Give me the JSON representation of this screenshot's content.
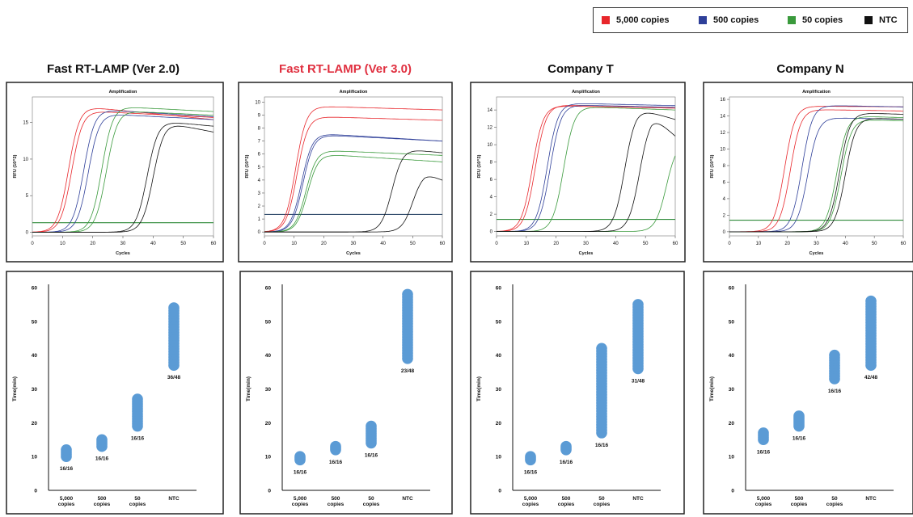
{
  "legend": [
    {
      "label": "5,000 copies",
      "color": "#e8262b"
    },
    {
      "label": "500 copies",
      "color": "#2e3f99"
    },
    {
      "label": "50 copies",
      "color": "#3a9a3c"
    },
    {
      "label": "NTC",
      "color": "#111111"
    }
  ],
  "columns": [
    {
      "title": "Fast RT-LAMP (Ver 2.0)",
      "title_color": "#111111"
    },
    {
      "title": "Fast RT-LAMP (Ver 3.0)",
      "title_color": "#e03040"
    },
    {
      "title": "Company T",
      "title_color": "#111111"
    },
    {
      "title": "Company N",
      "title_color": "#111111"
    }
  ],
  "chart_data": [
    {
      "type": "line",
      "panel": "amplification",
      "column": 0,
      "title": "Amplification",
      "xlabel": "Cycles",
      "ylabel": "RFU (10^3)",
      "xlim": [
        0,
        60
      ],
      "ylim": [
        -0.5,
        18.5
      ],
      "xticks": [
        0,
        10,
        20,
        30,
        40,
        50,
        60
      ],
      "yticks": [
        0,
        5,
        10,
        15
      ],
      "threshold": 1.3,
      "series": [
        {
          "color": "#e8262b",
          "curves": [
            {
              "mid": 12,
              "max": 17.2,
              "end": 15.4
            },
            {
              "mid": 13,
              "max": 16.6,
              "end": 15.7
            }
          ]
        },
        {
          "color": "#2e3f99",
          "curves": [
            {
              "mid": 17,
              "max": 16.8,
              "end": 15.8
            },
            {
              "mid": 18.5,
              "max": 16.2,
              "end": 15.4
            }
          ]
        },
        {
          "color": "#3a9a3c",
          "curves": [
            {
              "mid": 23,
              "max": 17.2,
              "end": 16.5
            },
            {
              "mid": 24.5,
              "max": 16.6,
              "end": 16.0
            }
          ]
        },
        {
          "color": "#111111",
          "curves": [
            {
              "mid": 38,
              "max": 15.2,
              "end": 14.5
            },
            {
              "mid": 40,
              "max": 15.0,
              "end": 13.7
            }
          ]
        }
      ]
    },
    {
      "type": "line",
      "panel": "amplification",
      "column": 1,
      "title": "Amplification",
      "xlabel": "Cycles",
      "ylabel": "RFU (10^3)",
      "xlim": [
        0,
        60
      ],
      "ylim": [
        -0.3,
        10.4
      ],
      "xticks": [
        0,
        10,
        20,
        30,
        40,
        50,
        60
      ],
      "yticks": [
        0,
        1,
        2,
        3,
        4,
        5,
        6,
        7,
        8,
        9,
        10
      ],
      "threshold": 1.35,
      "series": [
        {
          "color": "#e8262b",
          "curves": [
            {
              "mid": 10.5,
              "max": 9.7,
              "end": 9.4
            },
            {
              "mid": 11,
              "max": 8.9,
              "end": 8.6
            }
          ]
        },
        {
          "color": "#2e3f99",
          "curves": [
            {
              "mid": 12.5,
              "max": 7.6,
              "end": 7.0
            },
            {
              "mid": 13,
              "max": 7.5,
              "end": 7.0
            }
          ]
        },
        {
          "color": "#3a9a3c",
          "curves": [
            {
              "mid": 14,
              "max": 6.3,
              "end": 5.9
            },
            {
              "mid": 14.5,
              "max": 6.0,
              "end": 5.4
            }
          ]
        },
        {
          "color": "#111111",
          "curves": [
            {
              "mid": 43,
              "max": 6.4,
              "end": 6.1
            },
            {
              "mid": 50,
              "max": 4.6,
              "end": 4.0
            }
          ]
        }
      ]
    },
    {
      "type": "line",
      "panel": "amplification",
      "column": 2,
      "title": "Amplification",
      "xlabel": "Cycles",
      "ylabel": "RFU (10^3)",
      "xlim": [
        0,
        60
      ],
      "ylim": [
        -0.5,
        15.5
      ],
      "xticks": [
        0,
        10,
        20,
        30,
        40,
        50,
        60
      ],
      "yticks": [
        0,
        2,
        4,
        6,
        8,
        10,
        12,
        14
      ],
      "threshold": 1.4,
      "series": [
        {
          "color": "#e8262b",
          "curves": [
            {
              "mid": 12,
              "max": 14.5,
              "end": 14.2
            },
            {
              "mid": 13,
              "max": 14.6,
              "end": 14.3
            }
          ]
        },
        {
          "color": "#2e3f99",
          "curves": [
            {
              "mid": 17,
              "max": 14.8,
              "end": 14.5
            },
            {
              "mid": 18,
              "max": 14.6,
              "end": 14.3
            }
          ]
        },
        {
          "color": "#3a9a3c",
          "curves": [
            {
              "mid": 22.5,
              "max": 14.4,
              "end": 14.0
            },
            {
              "mid": 57,
              "max": 14.0,
              "end": 10.4
            }
          ]
        },
        {
          "color": "#111111",
          "curves": [
            {
              "mid": 43,
              "max": 14.2,
              "end": 12.9
            },
            {
              "mid": 48,
              "max": 13.5,
              "end": 11.0
            }
          ]
        }
      ]
    },
    {
      "type": "line",
      "panel": "amplification",
      "column": 3,
      "title": "Amplification",
      "xlabel": "Cycles",
      "ylabel": "RFU (10^3)",
      "xlim": [
        0,
        60
      ],
      "ylim": [
        -0.5,
        16.3
      ],
      "xticks": [
        0,
        10,
        20,
        30,
        40,
        50,
        60
      ],
      "yticks": [
        0,
        2,
        4,
        6,
        8,
        10,
        12,
        14,
        16
      ],
      "threshold": 1.4,
      "series": [
        {
          "color": "#e8262b",
          "curves": [
            {
              "mid": 19,
              "max": 15.2,
              "end": 15.1
            },
            {
              "mid": 21,
              "max": 14.8,
              "end": 14.6
            }
          ]
        },
        {
          "color": "#2e3f99",
          "curves": [
            {
              "mid": 25,
              "max": 15.3,
              "end": 15.1
            },
            {
              "mid": 27,
              "max": 13.8,
              "end": 13.6
            }
          ]
        },
        {
          "color": "#3a9a3c",
          "curves": [
            {
              "mid": 37,
              "max": 14.0,
              "end": 13.8
            },
            {
              "mid": 38.5,
              "max": 13.6,
              "end": 13.4
            }
          ]
        },
        {
          "color": "#111111",
          "curves": [
            {
              "mid": 38,
              "max": 14.4,
              "end": 14.2
            },
            {
              "mid": 40,
              "max": 13.8,
              "end": 13.6
            }
          ]
        }
      ]
    },
    {
      "type": "scatter",
      "panel": "time",
      "column": 0,
      "ylabel": "Time(min)",
      "ylim": [
        0,
        60
      ],
      "yticks": [
        0,
        10,
        20,
        30,
        40,
        50,
        60
      ],
      "categories": [
        "5,000\ncopies",
        "500\ncopies",
        "50\ncopies",
        "NTC"
      ],
      "ranges": [
        [
          10,
          12
        ],
        [
          13,
          15
        ],
        [
          19,
          27
        ],
        [
          37,
          54
        ]
      ],
      "labels": [
        "16/16",
        "16/16",
        "16/16",
        "36/48"
      ]
    },
    {
      "type": "scatter",
      "panel": "time",
      "column": 1,
      "ylabel": "Time(min)",
      "ylim": [
        0,
        60
      ],
      "yticks": [
        0,
        10,
        20,
        30,
        40,
        50,
        60
      ],
      "categories": [
        "5,000\ncopies",
        "500\ncopies",
        "50\ncopies",
        "NTC"
      ],
      "ranges": [
        [
          9,
          10
        ],
        [
          12,
          13
        ],
        [
          14,
          19
        ],
        [
          39,
          58
        ]
      ],
      "labels": [
        "16/16",
        "16/16",
        "16/16",
        "23/48"
      ]
    },
    {
      "type": "scatter",
      "panel": "time",
      "column": 2,
      "ylabel": "Time(min)",
      "ylim": [
        0,
        60
      ],
      "yticks": [
        0,
        10,
        20,
        30,
        40,
        50,
        60
      ],
      "categories": [
        "5,000\ncopies",
        "500\ncopies",
        "50\ncopies",
        "NTC"
      ],
      "ranges": [
        [
          9,
          10
        ],
        [
          12,
          13
        ],
        [
          17,
          42
        ],
        [
          36,
          55
        ]
      ],
      "labels": [
        "16/16",
        "16/16",
        "16/16",
        "31/48"
      ]
    },
    {
      "type": "scatter",
      "panel": "time",
      "column": 3,
      "ylabel": "Time(min)",
      "ylim": [
        0,
        60
      ],
      "yticks": [
        0,
        10,
        20,
        30,
        40,
        50,
        60
      ],
      "categories": [
        "5,000\ncopies",
        "500\ncopies",
        "50\ncopies",
        "NTC"
      ],
      "ranges": [
        [
          15,
          17
        ],
        [
          19,
          22
        ],
        [
          33,
          40
        ],
        [
          37,
          56
        ]
      ],
      "labels": [
        "16/16",
        "16/16",
        "16/16",
        "42/48"
      ]
    }
  ]
}
